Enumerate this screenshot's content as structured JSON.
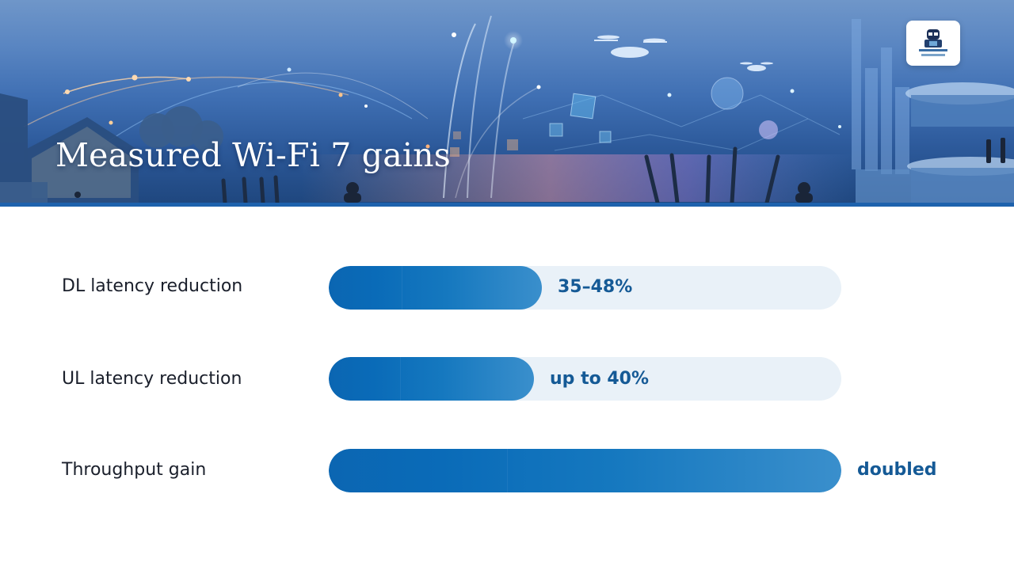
{
  "header": {
    "title": "Measured Wi-Fi 7 gains",
    "logo_icon": "techie-nerds-logo-icon"
  },
  "metrics": [
    {
      "label": "DL latency reduction",
      "value_text": "35–48%",
      "fill_fraction": 0.415
    },
    {
      "label": "UL latency reduction",
      "value_text": "up to 40%",
      "fill_fraction": 0.4
    },
    {
      "label": "Throughput gain",
      "value_text": "doubled",
      "fill_fraction": 1.0
    }
  ],
  "colors": {
    "bar_fill_start": "#0b66b2",
    "bar_fill_end": "#3a8fcc",
    "bar_track": "#e9f1f8",
    "value_text": "#155a96",
    "label_text": "#1a1f2b",
    "banner_accent": "#1e62ad"
  }
}
